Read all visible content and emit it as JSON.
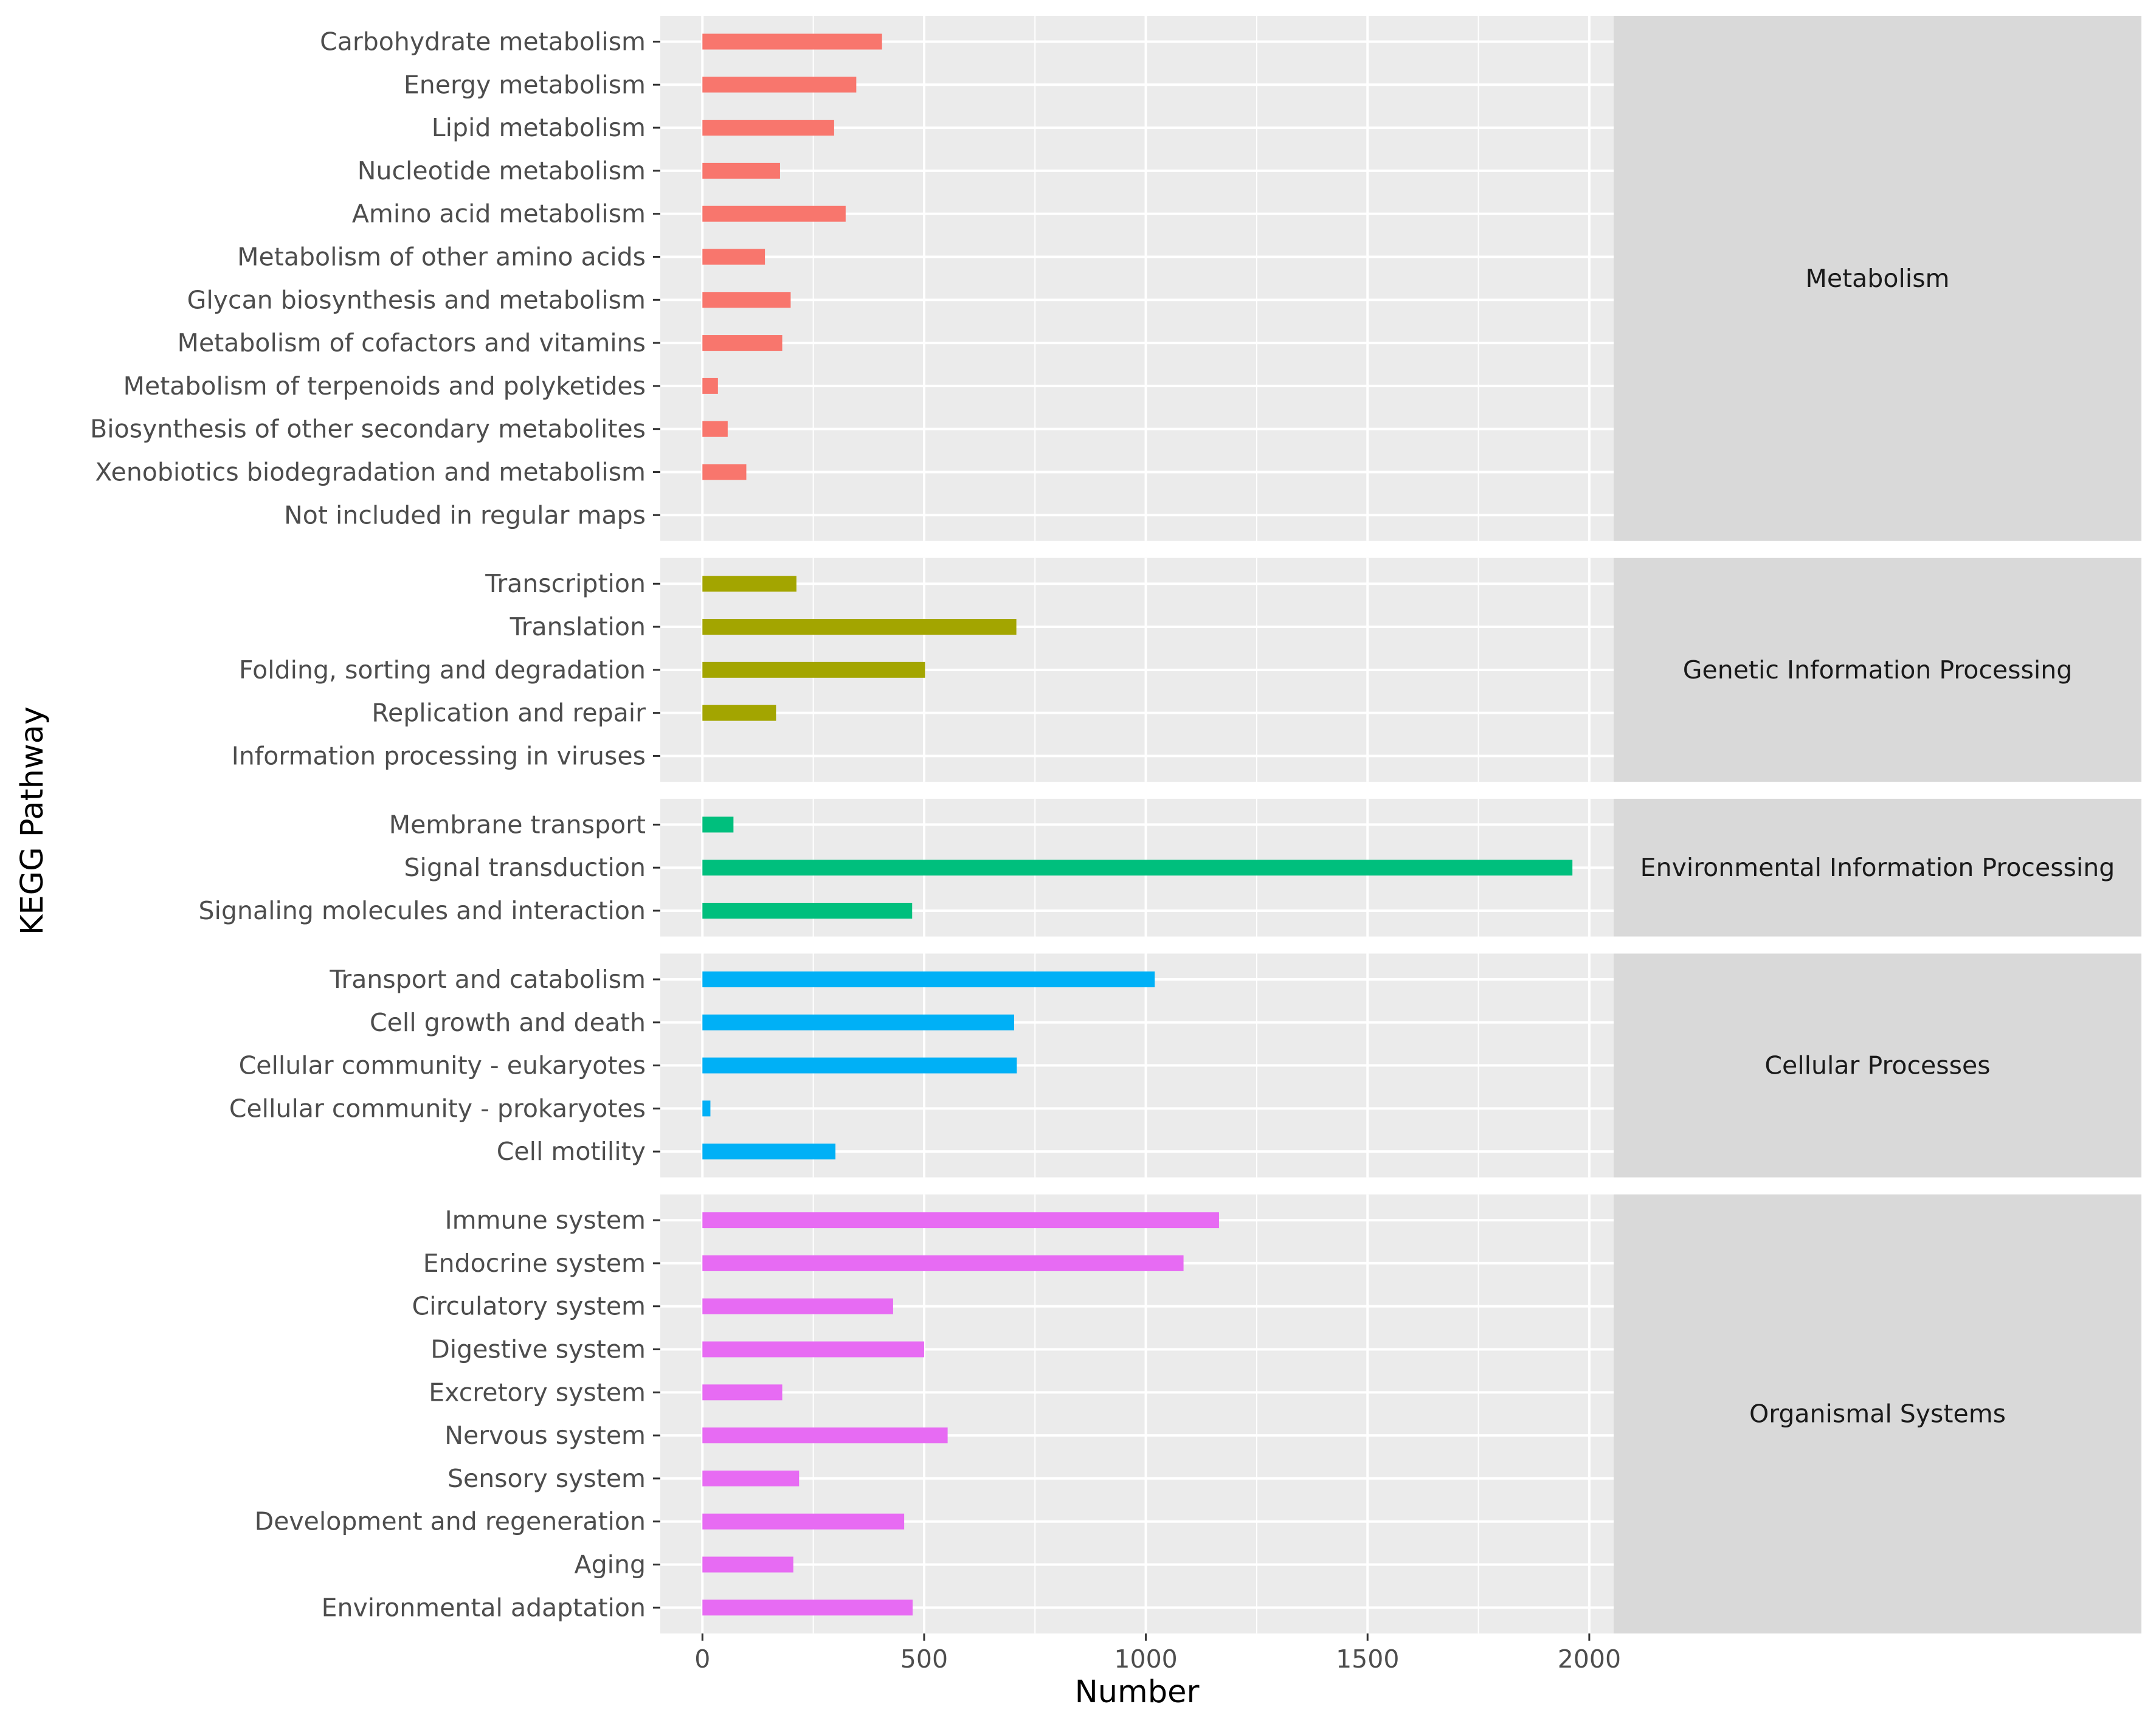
{
  "chart_data": {
    "type": "bar",
    "orientation": "horizontal",
    "xlabel": "Number",
    "ylabel": "KEGG Pathway",
    "xlim": [
      -95,
      2055
    ],
    "xticks": [
      0,
      500,
      1000,
      1500,
      2000
    ],
    "grid": true,
    "legend": "none",
    "facets": [
      {
        "name": "Metabolism",
        "color": "#F8766D",
        "categories": [
          "Carbohydrate metabolism",
          "Energy metabolism",
          "Lipid metabolism",
          "Nucleotide metabolism",
          "Amino acid metabolism",
          "Metabolism of other amino acids",
          "Glycan biosynthesis and metabolism",
          "Metabolism of cofactors and vitamins",
          "Metabolism of terpenoids and polyketides",
          "Biosynthesis of other secondary metabolites",
          "Xenobiotics biodegradation and metabolism",
          "Not included in regular maps"
        ],
        "values": [
          405,
          347,
          297,
          175,
          323,
          141,
          199,
          180,
          35,
          57,
          99,
          0
        ]
      },
      {
        "name": "Genetic Information Processing",
        "color": "#A3A500",
        "categories": [
          "Transcription",
          "Translation",
          "Folding, sorting and degradation",
          "Replication and repair",
          "Information processing in viruses"
        ],
        "values": [
          212,
          708,
          502,
          166,
          0
        ]
      },
      {
        "name": "Environmental Information Processing",
        "color": "#00BF7D",
        "categories": [
          "Membrane transport",
          "Signal transduction",
          "Signaling molecules and interaction"
        ],
        "values": [
          70,
          1962,
          473
        ]
      },
      {
        "name": "Cellular Processes",
        "color": "#00B0F6",
        "categories": [
          "Transport and catabolism",
          "Cell growth and death",
          "Cellular community - eukaryotes",
          "Cellular community - prokaryotes",
          "Cell motility"
        ],
        "values": [
          1020,
          703,
          709,
          18,
          300
        ]
      },
      {
        "name": "Organismal Systems",
        "color": "#E76BF3",
        "categories": [
          "Immune system",
          "Endocrine system",
          "Circulatory system",
          "Digestive system",
          "Excretory system",
          "Nervous system",
          "Sensory system",
          "Development and regeneration",
          "Aging",
          "Environmental adaptation"
        ],
        "values": [
          1165,
          1085,
          430,
          500,
          180,
          553,
          218,
          455,
          205,
          474
        ]
      }
    ]
  }
}
